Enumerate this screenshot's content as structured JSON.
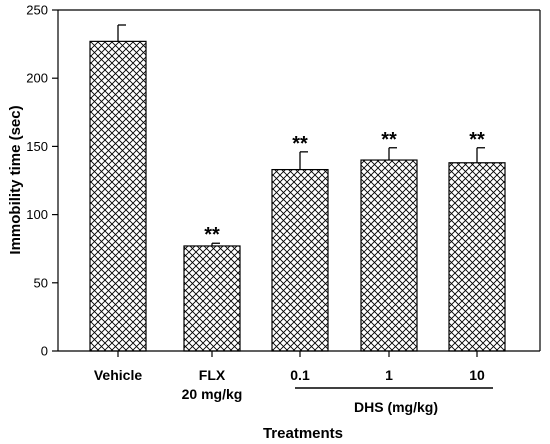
{
  "chart_data": {
    "type": "bar",
    "title": "",
    "xlabel": "Treatments",
    "ylabel": "Immobility time (sec)",
    "ylim": [
      0,
      250
    ],
    "yticks": [
      0,
      50,
      100,
      150,
      200,
      250
    ],
    "categories": [
      {
        "line1": "Vehicle",
        "line2": ""
      },
      {
        "line1": "FLX",
        "line2": "20 mg/kg"
      },
      {
        "line1": "0.1",
        "line2": ""
      },
      {
        "line1": "1",
        "line2": ""
      },
      {
        "line1": "10",
        "line2": ""
      }
    ],
    "values": [
      227,
      77,
      133,
      140,
      138
    ],
    "errors": [
      12,
      2,
      13,
      9,
      11
    ],
    "significance": [
      "",
      "**",
      "**",
      "**",
      "**"
    ],
    "group_label": "DHS (mg/kg)",
    "bar_pattern": "crosshatch",
    "grid": false,
    "legend": "none"
  }
}
